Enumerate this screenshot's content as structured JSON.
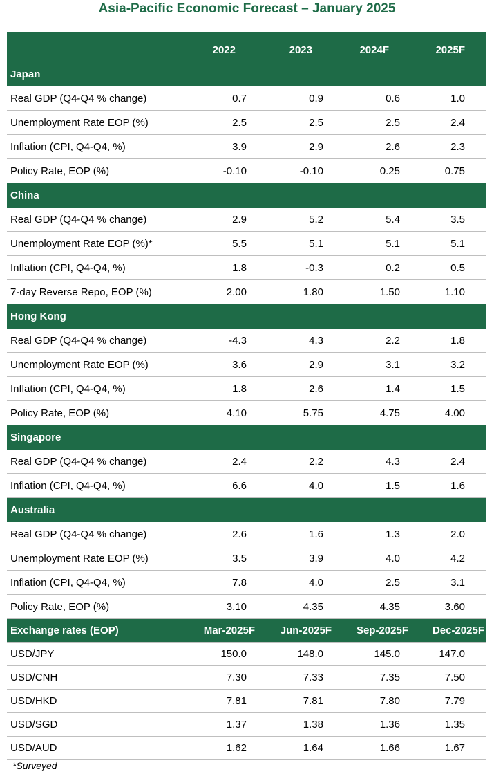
{
  "title": "Asia-Pacific Economic Forecast – January 2025",
  "columns": [
    "",
    "2022",
    "2023",
    "2024F",
    "2025F"
  ],
  "sections": [
    {
      "name": "Japan",
      "rows": [
        {
          "label": "Real GDP (Q4-Q4 % change)",
          "values": [
            "0.7",
            "0.9",
            "0.6",
            "1.0"
          ]
        },
        {
          "label": "Unemployment Rate EOP (%)",
          "values": [
            "2.5",
            "2.5",
            "2.5",
            "2.4"
          ]
        },
        {
          "label": "Inflation (CPI, Q4-Q4, %)",
          "values": [
            "3.9",
            "2.9",
            "2.6",
            "2.3"
          ]
        },
        {
          "label": "Policy Rate, EOP (%)",
          "values": [
            "-0.10",
            "-0.10",
            "0.25",
            "0.75"
          ]
        }
      ]
    },
    {
      "name": "China",
      "rows": [
        {
          "label": "Real GDP (Q4-Q4 % change)",
          "values": [
            "2.9",
            "5.2",
            "5.4",
            "3.5"
          ]
        },
        {
          "label": "Unemployment Rate EOP (%)*",
          "values": [
            "5.5",
            "5.1",
            "5.1",
            "5.1"
          ]
        },
        {
          "label": "Inflation (CPI, Q4-Q4, %)",
          "values": [
            "1.8",
            "-0.3",
            "0.2",
            "0.5"
          ]
        },
        {
          "label": "7-day Reverse Repo, EOP (%)",
          "values": [
            "2.00",
            "1.80",
            "1.50",
            "1.10"
          ]
        }
      ]
    },
    {
      "name": "Hong Kong",
      "rows": [
        {
          "label": "Real GDP (Q4-Q4 % change)",
          "values": [
            "-4.3",
            "4.3",
            "2.2",
            "1.8"
          ]
        },
        {
          "label": "Unemployment Rate EOP (%)",
          "values": [
            "3.6",
            "2.9",
            "3.1",
            "3.2"
          ]
        },
        {
          "label": "Inflation (CPI, Q4-Q4, %)",
          "values": [
            "1.8",
            "2.6",
            "1.4",
            "1.5"
          ]
        },
        {
          "label": "Policy Rate, EOP (%)",
          "values": [
            "4.10",
            "5.75",
            "4.75",
            "4.00"
          ]
        }
      ]
    },
    {
      "name": "Singapore",
      "rows": [
        {
          "label": "Real GDP (Q4-Q4 % change)",
          "values": [
            "2.4",
            "2.2",
            "4.3",
            "2.4"
          ]
        },
        {
          "label": "Inflation (CPI, Q4-Q4, %)",
          "values": [
            "6.6",
            "4.0",
            "1.5",
            "1.6"
          ]
        }
      ]
    },
    {
      "name": "Australia",
      "rows": [
        {
          "label": "Real GDP (Q4-Q4 % change)",
          "values": [
            "2.6",
            "1.6",
            "1.3",
            "2.0"
          ]
        },
        {
          "label": "Unemployment Rate EOP (%)",
          "values": [
            "3.5",
            "3.9",
            "4.0",
            "4.2"
          ]
        },
        {
          "label": "Inflation (CPI, Q4-Q4, %)",
          "values": [
            "7.8",
            "4.0",
            "2.5",
            "3.1"
          ]
        },
        {
          "label": "Policy Rate, EOP (%)",
          "values": [
            "3.10",
            "4.35",
            "4.35",
            "3.60"
          ]
        }
      ]
    }
  ],
  "fx": {
    "columns": [
      "Exchange rates (EOP)",
      "Mar-2025F",
      "Jun-2025F",
      "Sep-2025F",
      "Dec-2025F"
    ],
    "rows": [
      {
        "label": "USD/JPY",
        "values": [
          "150.0",
          "148.0",
          "145.0",
          "147.0"
        ]
      },
      {
        "label": "USD/CNH",
        "values": [
          "7.30",
          "7.33",
          "7.35",
          "7.50"
        ]
      },
      {
        "label": "USD/HKD",
        "values": [
          "7.81",
          "7.81",
          "7.80",
          "7.79"
        ]
      },
      {
        "label": "USD/SGD",
        "values": [
          "1.37",
          "1.38",
          "1.36",
          "1.35"
        ]
      },
      {
        "label": "USD/AUD",
        "values": [
          "1.62",
          "1.64",
          "1.66",
          "1.67"
        ]
      }
    ]
  },
  "footnote": "*Surveyed",
  "colors": {
    "header_green": "#1e6b47",
    "header_text": "#ffffff",
    "row_border": "#bfbfbf"
  }
}
